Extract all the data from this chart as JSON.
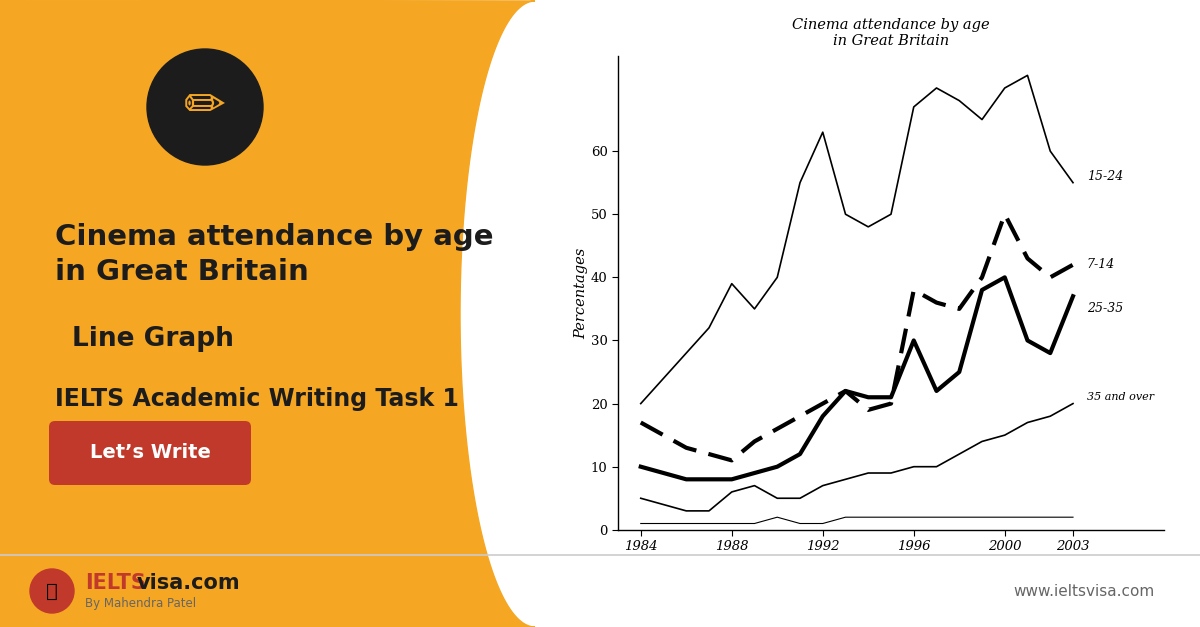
{
  "title_line1": "Cinema attendance by age",
  "title_line2": "in Great Britain",
  "subtitle": "Line Graph",
  "task_label": "IELTS Academic Writing Task 1",
  "button_text": "Let’s Write",
  "website": "www.ieltsvisa.com",
  "logo_ielts": "IELTS",
  "logo_visa": "visa.com",
  "logo_sub": "By Mahendra Patel",
  "chart_title_line1": "Cinema attendance by age",
  "chart_title_line2": "in Great Britain",
  "ylabel": "Percentages",
  "orange_color": "#F5A623",
  "dark_color": "#1C1C1C",
  "button_color": "#C0392B",
  "white_color": "#FFFFFF",
  "years": [
    1984,
    1985,
    1986,
    1987,
    1988,
    1989,
    1990,
    1991,
    1992,
    1993,
    1994,
    1995,
    1996,
    1997,
    1998,
    1999,
    2000,
    2001,
    2002,
    2003
  ],
  "age_15_24": [
    20,
    24,
    28,
    32,
    39,
    35,
    40,
    55,
    63,
    50,
    48,
    50,
    67,
    70,
    68,
    65,
    70,
    72,
    60,
    55
  ],
  "age_7_14": [
    17,
    15,
    13,
    12,
    11,
    14,
    16,
    18,
    20,
    22,
    19,
    20,
    38,
    36,
    35,
    40,
    50,
    43,
    40,
    42
  ],
  "age_25_35": [
    10,
    9,
    8,
    8,
    8,
    9,
    10,
    12,
    18,
    22,
    21,
    21,
    30,
    22,
    25,
    38,
    40,
    30,
    28,
    37
  ],
  "age_35_over": [
    5,
    4,
    3,
    3,
    6,
    7,
    5,
    5,
    7,
    8,
    9,
    9,
    10,
    10,
    12,
    14,
    15,
    17,
    18,
    20
  ],
  "age_under_7": [
    1,
    1,
    1,
    1,
    1,
    1,
    2,
    1,
    1,
    2,
    2,
    2,
    2,
    2,
    2,
    2,
    2,
    2,
    2,
    2
  ],
  "ylim": [
    0,
    75
  ],
  "yticks": [
    0,
    10,
    20,
    30,
    40,
    50,
    60
  ],
  "xticks": [
    1984,
    1988,
    1992,
    1996,
    2000,
    2003
  ]
}
